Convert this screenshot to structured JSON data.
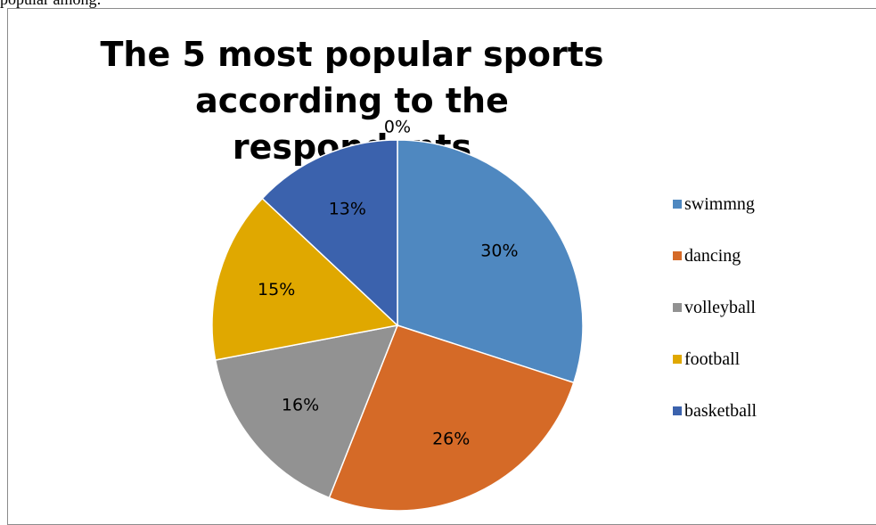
{
  "page": {
    "top_text": "popular among:"
  },
  "chart_data": {
    "type": "pie",
    "title": "The 5 most popular sports according to the respondents",
    "categories": [
      "swimmng",
      "dancing",
      "volleyball",
      "football",
      "basketball",
      ""
    ],
    "values": [
      30,
      26,
      16,
      15,
      13,
      0
    ],
    "labels": [
      "30%",
      "26%",
      "16%",
      "15%",
      "13%",
      "0%"
    ],
    "colors": [
      "#4f88c0",
      "#d56a27",
      "#929292",
      "#e0a800",
      "#3b62ad",
      "#70ad47"
    ],
    "legend": {
      "placement": "right",
      "entries": [
        "swimmng",
        "dancing",
        "volleyball",
        "football",
        "basketball"
      ]
    }
  }
}
